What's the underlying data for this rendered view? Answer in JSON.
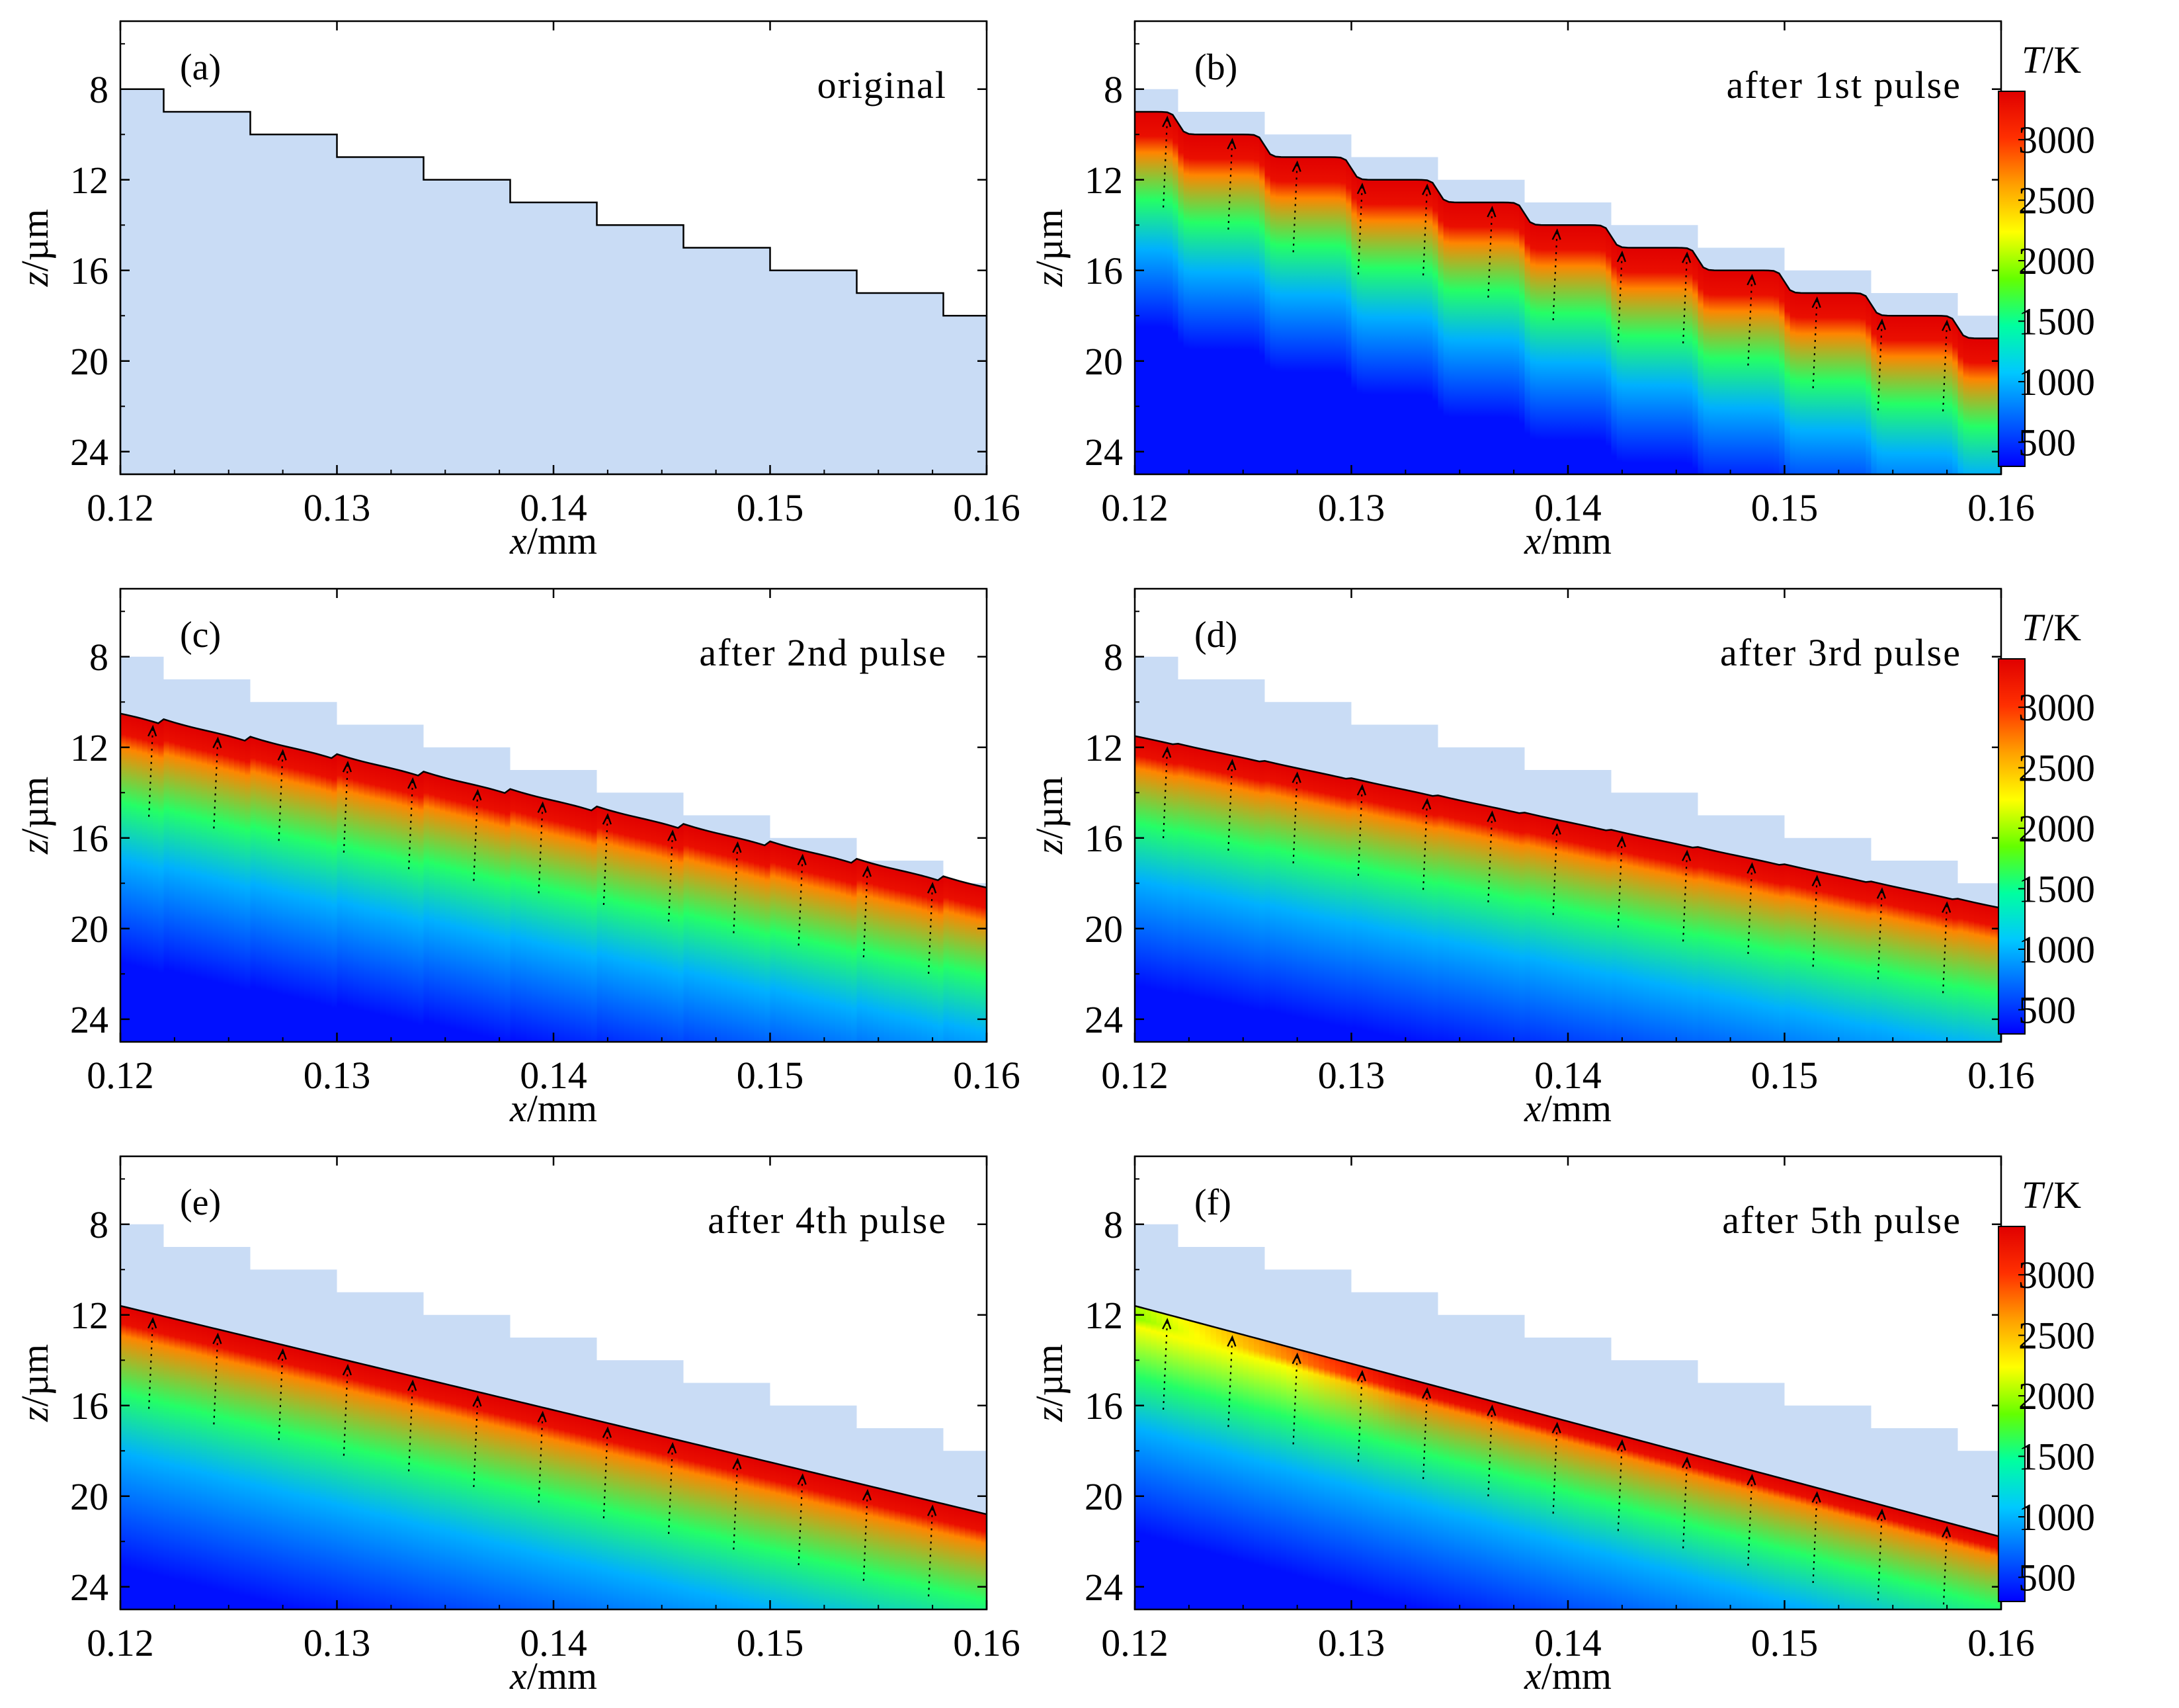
{
  "chart_data": {
    "type": "heatmap",
    "description_units": {
      "x": "mm",
      "z": "µm",
      "T": "K"
    },
    "shared": {
      "xlabel_var": "x",
      "xlabel_unit": "/mm",
      "ylabel_var": "z",
      "ylabel_unit": "/µm",
      "xlim": [
        0.12,
        0.16
      ],
      "ylim": [
        5,
        25
      ],
      "y_inverted": true,
      "x_ticks": [
        0.12,
        0.13,
        0.14,
        0.15,
        0.16
      ],
      "x_tick_labels": [
        "0.12",
        "0.13",
        "0.14",
        "0.15",
        "0.16"
      ],
      "y_ticks": [
        8,
        12,
        16,
        20,
        24
      ],
      "y_tick_labels": [
        "8",
        "12",
        "16",
        "20",
        "24"
      ],
      "original_profile_steps": {
        "x_edges": [
          0.12,
          0.122,
          0.126,
          0.13,
          0.134,
          0.138,
          0.142,
          0.146,
          0.15,
          0.154,
          0.158,
          0.16
        ],
        "z_levels": [
          8,
          9,
          10,
          11,
          12,
          13,
          14,
          15,
          16,
          17,
          18
        ]
      },
      "unmelted_color": "#c9dcf5"
    },
    "colorbar": {
      "title_var": "T",
      "title_unit": "/K",
      "min": 300,
      "max": 3400,
      "ticks": [
        500,
        1000,
        1500,
        2000,
        2500,
        3000
      ],
      "tick_labels": [
        "500",
        "1000",
        "1500",
        "2000",
        "2500",
        "3000"
      ],
      "colormap": [
        "#0000ff",
        "#0064ff",
        "#00c8ff",
        "#00ffa0",
        "#64ff00",
        "#ffff00",
        "#ffa000",
        "#ff3000",
        "#e00000"
      ]
    },
    "panels": [
      {
        "id": "a",
        "letter": "(a)",
        "caption": "original",
        "heated": false,
        "surface": {
          "kind": "steps"
        }
      },
      {
        "id": "b",
        "letter": "(b)",
        "caption": "after 1st pulse",
        "heated": true,
        "surface": {
          "kind": "rounded_steps",
          "offset": 1.0,
          "round": 0.45
        },
        "hot_band": 1.8,
        "gradient_depth": 9.5
      },
      {
        "id": "c",
        "letter": "(c)",
        "caption": "after 2nd pulse",
        "heated": true,
        "surface": {
          "kind": "wavy_line",
          "z0": 10.5,
          "z1": 18.2,
          "ripple": 0.25
        },
        "hot_band": 1.5,
        "gradient_depth": 11.0
      },
      {
        "id": "d",
        "letter": "(d)",
        "caption": "after 3rd pulse",
        "heated": true,
        "surface": {
          "kind": "wavy_line",
          "z0": 11.5,
          "z1": 19.1,
          "ripple": 0.08
        },
        "hot_band": 1.4,
        "gradient_depth": 11.0
      },
      {
        "id": "e",
        "letter": "(e)",
        "caption": "after 4th pulse",
        "heated": true,
        "surface": {
          "kind": "line",
          "z0": 11.6,
          "z1": 20.8
        },
        "hot_band": 1.3,
        "gradient_depth": 11.5
      },
      {
        "id": "f",
        "letter": "(f)",
        "caption": "after 5th pulse",
        "heated": true,
        "surface": {
          "kind": "line",
          "z0": 11.6,
          "z1": 21.8
        },
        "hot_band": 0.9,
        "gradient_depth": 10.0,
        "cooler_left": true
      }
    ]
  }
}
